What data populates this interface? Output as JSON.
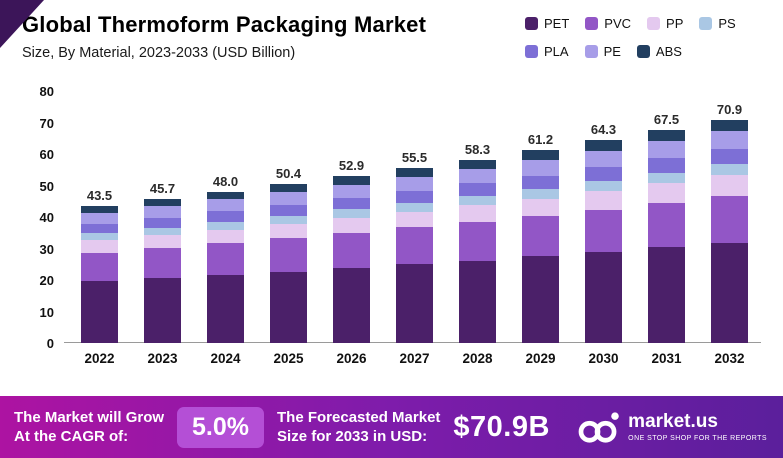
{
  "page": {
    "title": "Global Thermoform Packaging Market",
    "subtitle": "Size, By Material, 2023-2033 (USD Billion)"
  },
  "chart_data": {
    "type": "bar",
    "stacked": true,
    "title": "Global Thermoform Packaging Market",
    "subtitle": "Size, By Material, 2023-2033 (USD Billion)",
    "unit": "USD Billion",
    "xlabel": "",
    "ylabel": "",
    "grid": false,
    "legend_position": "top-right",
    "categories": [
      "2022",
      "2023",
      "2024",
      "2025",
      "2026",
      "2027",
      "2028",
      "2029",
      "2030",
      "2031",
      "2032"
    ],
    "totals": [
      "43.5",
      "45.7",
      "48.0",
      "50.4",
      "52.9",
      "55.5",
      "58.3",
      "61.2",
      "64.3",
      "67.5",
      "70.9"
    ],
    "series": [
      {
        "name": "PET",
        "color": "#4b2069",
        "values": [
          19.6,
          20.6,
          21.6,
          22.7,
          23.8,
          25.0,
          26.2,
          27.5,
          28.9,
          30.4,
          31.9
        ]
      },
      {
        "name": "PVC",
        "color": "#9256c6",
        "values": [
          9.1,
          9.6,
          10.1,
          10.6,
          11.1,
          11.7,
          12.2,
          12.9,
          13.5,
          14.2,
          14.9
        ]
      },
      {
        "name": "PP",
        "color": "#e4c9ef",
        "values": [
          3.9,
          4.1,
          4.3,
          4.5,
          4.9,
          5.0,
          5.3,
          5.5,
          5.8,
          6.1,
          6.4
        ]
      },
      {
        "name": "PS",
        "color": "#aac7e4",
        "values": [
          2.2,
          2.3,
          2.4,
          2.5,
          2.6,
          2.7,
          2.9,
          3.0,
          3.2,
          3.4,
          3.5
        ]
      },
      {
        "name": "PLA",
        "color": "#7d6fd6",
        "values": [
          3.0,
          3.2,
          3.4,
          3.6,
          3.7,
          3.9,
          4.1,
          4.3,
          4.6,
          4.7,
          5.0
        ]
      },
      {
        "name": "PE",
        "color": "#a79de8",
        "values": [
          3.5,
          3.7,
          3.8,
          4.0,
          4.2,
          4.4,
          4.7,
          4.9,
          5.1,
          5.4,
          5.7
        ]
      },
      {
        "name": "ABS",
        "color": "#223f60",
        "values": [
          2.2,
          2.2,
          2.4,
          2.5,
          2.6,
          2.8,
          2.9,
          3.1,
          3.2,
          3.3,
          3.5
        ]
      }
    ],
    "ylim": [
      0,
      80
    ],
    "yticks": [
      0,
      10,
      20,
      30,
      40,
      50,
      60,
      70,
      80
    ]
  },
  "footer": {
    "cagr_label_line1": "The Market will Grow",
    "cagr_label_line2": "At the CAGR of:",
    "cagr_value": "5.0%",
    "forecast_label_line1": "The Forecasted Market",
    "forecast_label_line2": "Size for 2033 in USD:",
    "forecast_value": "$70.9B",
    "brand_name": "market.us",
    "brand_tagline": "ONE STOP SHOP FOR THE REPORTS"
  },
  "colors": {
    "banner_gradient_start": "#ad13a2",
    "banner_gradient_mid": "#7e1cab",
    "banner_gradient_end": "#5b1f9c",
    "cagr_pill_bg": "#b44fd6",
    "corner_triangle": "#3c1559"
  }
}
